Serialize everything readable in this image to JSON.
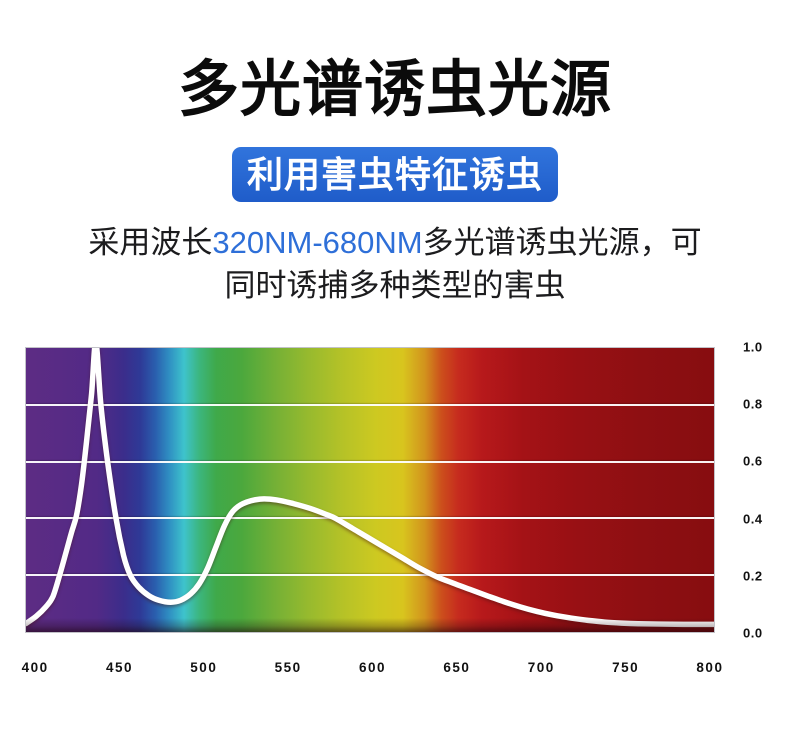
{
  "page": {
    "title": "多光谱诱虫光源",
    "badge": "利用害虫特征诱虫",
    "description": {
      "prefix": "采用波长",
      "highlight": "320NM-680NM",
      "line1_suffix": "多光谱诱虫光源，可",
      "line2": "同时诱捕多种类型的害虫"
    }
  },
  "colors": {
    "badge_blue_top": "#3174dc",
    "badge_blue_bottom": "#1f5cc9",
    "highlight_blue": "#2e6fd8",
    "title_black": "#0b0b0b",
    "body_text": "#1c1c1e",
    "curve_white": "#ffffff",
    "background": "#ffffff"
  },
  "chart_data": {
    "type": "line",
    "title": "",
    "xlabel": "",
    "ylabel": "",
    "legend_position": "none",
    "grid": "horizontal white lines",
    "xlim": [
      394,
      803
    ],
    "ylim": [
      0,
      1
    ],
    "x_ticks": [
      400,
      450,
      500,
      550,
      600,
      650,
      700,
      750,
      800
    ],
    "y_ticks": [
      "1.0",
      "0.8",
      "0.6",
      "0.4",
      "0.2",
      "0.0"
    ],
    "grid_y": [
      0.2,
      0.4,
      0.6,
      0.8
    ],
    "series": [
      {
        "name": "spectral-response-curve",
        "color": "#ffffff",
        "points": [
          [
            394,
            0.03
          ],
          [
            400,
            0.055
          ],
          [
            406,
            0.09
          ],
          [
            410,
            0.125
          ],
          [
            414,
            0.2
          ],
          [
            418,
            0.285
          ],
          [
            421,
            0.35
          ],
          [
            424,
            0.41
          ],
          [
            427,
            0.52
          ],
          [
            430,
            0.67
          ],
          [
            433,
            0.84
          ],
          [
            435.5,
            1.02
          ],
          [
            438.5,
            0.8
          ],
          [
            442.5,
            0.6
          ],
          [
            447.5,
            0.4
          ],
          [
            452,
            0.27
          ],
          [
            456,
            0.2
          ],
          [
            461,
            0.158
          ],
          [
            467,
            0.128
          ],
          [
            473,
            0.112
          ],
          [
            480,
            0.105
          ],
          [
            486,
            0.112
          ],
          [
            492,
            0.135
          ],
          [
            497,
            0.17
          ],
          [
            502,
            0.225
          ],
          [
            507,
            0.3
          ],
          [
            512,
            0.375
          ],
          [
            517,
            0.425
          ],
          [
            523,
            0.452
          ],
          [
            533,
            0.468
          ],
          [
            543,
            0.465
          ],
          [
            553,
            0.452
          ],
          [
            563,
            0.435
          ],
          [
            572,
            0.415
          ],
          [
            578,
            0.4
          ],
          [
            588,
            0.365
          ],
          [
            598,
            0.33
          ],
          [
            608,
            0.295
          ],
          [
            618,
            0.26
          ],
          [
            628,
            0.225
          ],
          [
            638,
            0.195
          ],
          [
            648,
            0.172
          ],
          [
            658,
            0.15
          ],
          [
            668,
            0.128
          ],
          [
            678,
            0.107
          ],
          [
            688,
            0.088
          ],
          [
            698,
            0.072
          ],
          [
            708,
            0.059
          ],
          [
            718,
            0.049
          ],
          [
            728,
            0.041
          ],
          [
            738,
            0.035
          ],
          [
            748,
            0.031
          ],
          [
            758,
            0.029
          ],
          [
            770,
            0.028
          ],
          [
            785,
            0.027
          ],
          [
            803,
            0.027
          ]
        ]
      }
    ],
    "gradient_stops": [
      {
        "wavelength": 394,
        "color": "#5d2c84"
      },
      {
        "wavelength": 436,
        "color": "#522a86"
      },
      {
        "wavelength": 452,
        "color": "#3b2d8b"
      },
      {
        "wavelength": 462,
        "color": "#2e3a97"
      },
      {
        "wavelength": 471,
        "color": "#2a5fae"
      },
      {
        "wavelength": 479,
        "color": "#2f8ec2"
      },
      {
        "wavelength": 488,
        "color": "#3ec3cc"
      },
      {
        "wavelength": 497,
        "color": "#3cb67e"
      },
      {
        "wavelength": 507,
        "color": "#3fa94a"
      },
      {
        "wavelength": 522,
        "color": "#4ba83d"
      },
      {
        "wavelength": 542,
        "color": "#74b036"
      },
      {
        "wavelength": 562,
        "color": "#97ba2e"
      },
      {
        "wavelength": 582,
        "color": "#b5c227"
      },
      {
        "wavelength": 602,
        "color": "#cdc921"
      },
      {
        "wavelength": 618,
        "color": "#d8c51e"
      },
      {
        "wavelength": 631,
        "color": "#d2931d"
      },
      {
        "wavelength": 641,
        "color": "#cc4f1c"
      },
      {
        "wavelength": 651,
        "color": "#c62b1e"
      },
      {
        "wavelength": 665,
        "color": "#b7191b"
      },
      {
        "wavelength": 690,
        "color": "#a41216"
      },
      {
        "wavelength": 720,
        "color": "#991014"
      },
      {
        "wavelength": 760,
        "color": "#8e0f12"
      },
      {
        "wavelength": 803,
        "color": "#870d10"
      }
    ]
  }
}
